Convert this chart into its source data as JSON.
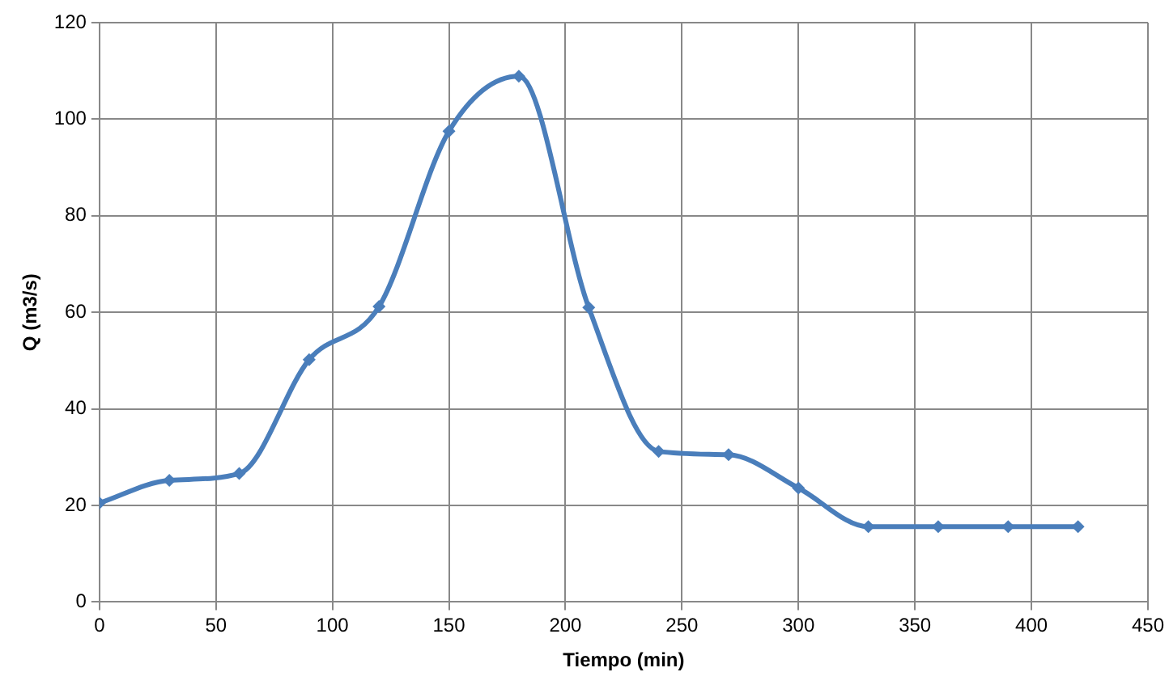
{
  "chart_data": {
    "type": "line",
    "xlabel": "Tiempo (min)",
    "ylabel": "Q (m3/s)",
    "x": [
      0,
      30,
      60,
      90,
      120,
      150,
      180,
      210,
      240,
      270,
      300,
      330,
      360,
      390,
      420
    ],
    "series": [
      {
        "color": "#4a7ebb",
        "values": [
          20.5,
          25.2,
          26.6,
          50.2,
          61.2,
          97.5,
          108.9,
          61,
          31.2,
          30.5,
          23.6,
          15.6,
          15.6,
          15.6,
          15.6
        ]
      }
    ],
    "xlim": [
      0,
      450
    ],
    "xticks": [
      0,
      50,
      100,
      150,
      200,
      250,
      300,
      350,
      400,
      450
    ],
    "ylim": [
      0,
      120
    ],
    "yticks": [
      0,
      20,
      40,
      60,
      80,
      100,
      120
    ],
    "grid": true,
    "legend": false,
    "marker": "diamond",
    "line_style": "solid"
  }
}
